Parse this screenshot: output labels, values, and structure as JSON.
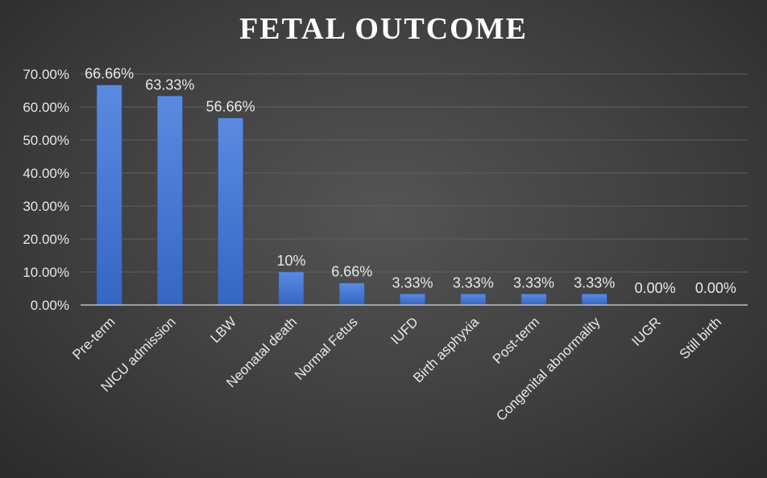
{
  "chart_data": {
    "type": "bar",
    "title": "FETAL OUTCOME",
    "categories": [
      "Pre-term",
      "NICU admission",
      "LBW",
      "Neonatal death",
      "Normal Fetus",
      "IUFD",
      "Birth asphyxia",
      "Post-term",
      "Congenital abnormality",
      "IUGR",
      "Still birth"
    ],
    "values": [
      66.66,
      63.33,
      56.66,
      10,
      6.66,
      3.33,
      3.33,
      3.33,
      3.33,
      0,
      0
    ],
    "data_labels": [
      "66.66%",
      "63.33%",
      "56.66%",
      "10%",
      "6.66%",
      "3.33%",
      "3.33%",
      "3.33%",
      "3.33%",
      "0.00%",
      "0.00%"
    ],
    "ylim": [
      0,
      70
    ],
    "yticks": [
      0,
      10,
      20,
      30,
      40,
      50,
      60,
      70
    ],
    "ytick_labels": [
      "0.00%",
      "10.00%",
      "20.00%",
      "30.00%",
      "40.00%",
      "50.00%",
      "60.00%",
      "70.00%"
    ],
    "grid": true,
    "colors": {
      "bar": "#4f7fd6",
      "bar_dark": "#3566c4",
      "grid": "#5e5e5e",
      "axis": "#bdbdbd",
      "text": "#e8e8e8"
    }
  }
}
